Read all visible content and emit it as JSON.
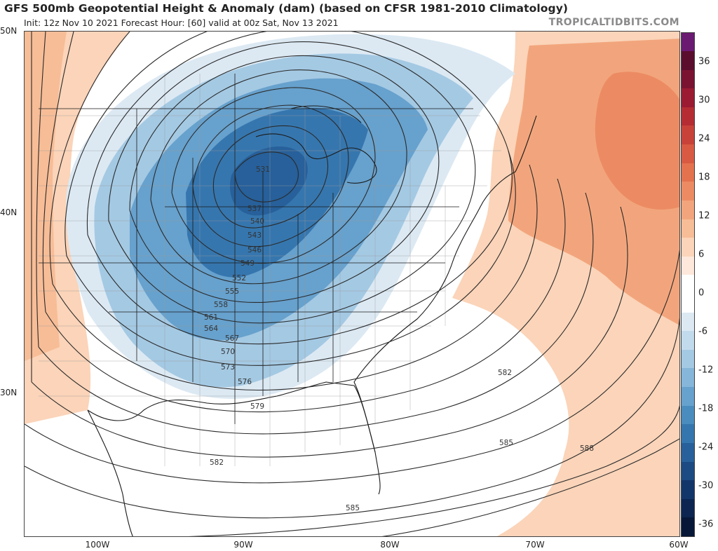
{
  "header": {
    "title": "GFS 500mb Geopotential Height & Anomaly (dam) (based on CFSR 1981-2010 Climatology)",
    "subtitle": "Init: 12z Nov 10 2021   Forecast Hour: [60]   valid at 00z Sat, Nov 13 2021",
    "brand": "TROPICALTIDBITS.COM"
  },
  "axes": {
    "lat_labels": [
      "50N",
      "40N",
      "30N"
    ],
    "lon_labels": [
      "100W",
      "90W",
      "80W",
      "70W",
      "60W"
    ],
    "lon_range": [
      -105,
      -60
    ],
    "lat_range": [
      21.5,
      50
    ]
  },
  "contour_labels": [
    "531",
    "537",
    "540",
    "543",
    "546",
    "549",
    "552",
    "555",
    "558",
    "561",
    "564",
    "567",
    "570",
    "573",
    "576",
    "579",
    "582",
    "582",
    "585",
    "585",
    "588"
  ],
  "colorbar": {
    "ticks": [
      "36",
      "30",
      "24",
      "18",
      "12",
      "6",
      "0",
      "-6",
      "-12",
      "-18",
      "-24",
      "-30",
      "-36"
    ],
    "segments": [
      {
        "color": "#5b0d2e"
      },
      {
        "color": "#7a1331"
      },
      {
        "color": "#9b1b33"
      },
      {
        "color": "#b52c33"
      },
      {
        "color": "#c84239"
      },
      {
        "color": "#d85a42"
      },
      {
        "color": "#e4724f"
      },
      {
        "color": "#ec8b63"
      },
      {
        "color": "#f2a57c"
      },
      {
        "color": "#f7bd97"
      },
      {
        "color": "#fbd4b9"
      },
      {
        "color": "#fde8db"
      },
      {
        "color": "#ffffff"
      },
      {
        "color": "#ffffff"
      },
      {
        "color": "#dce9f3"
      },
      {
        "color": "#c2dbec"
      },
      {
        "color": "#a4c9e3"
      },
      {
        "color": "#86b6d9"
      },
      {
        "color": "#67a1cd"
      },
      {
        "color": "#4b8cbf"
      },
      {
        "color": "#3676ae"
      },
      {
        "color": "#27609a"
      },
      {
        "color": "#1c4a82"
      },
      {
        "color": "#13366a"
      },
      {
        "color": "#0c2551"
      },
      {
        "color": "#071738"
      }
    ],
    "top_color": "#6a1a70"
  },
  "colors": {
    "warm_light": "#fbd4b9",
    "warm_mid": "#f2a57c",
    "warm_deep": "#e4724f",
    "cold_light": "#c2dbec",
    "cold_mid": "#86b6d9",
    "cold_deep": "#4b8cbf",
    "cold_core": "#27609a",
    "contour": "#2a2a2a",
    "border": "#222222"
  }
}
